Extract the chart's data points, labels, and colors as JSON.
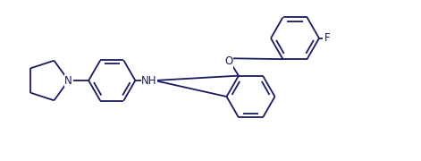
{
  "background_color": "#ffffff",
  "line_color": "#1a1a5e",
  "text_color": "#1a1a5e",
  "F_label": "F",
  "N_label": "N",
  "NH_label": "NH",
  "O_label": "O",
  "fig_width": 4.71,
  "fig_height": 1.8,
  "dpi": 100,
  "line_width": 1.3,
  "font_size": 8.5
}
